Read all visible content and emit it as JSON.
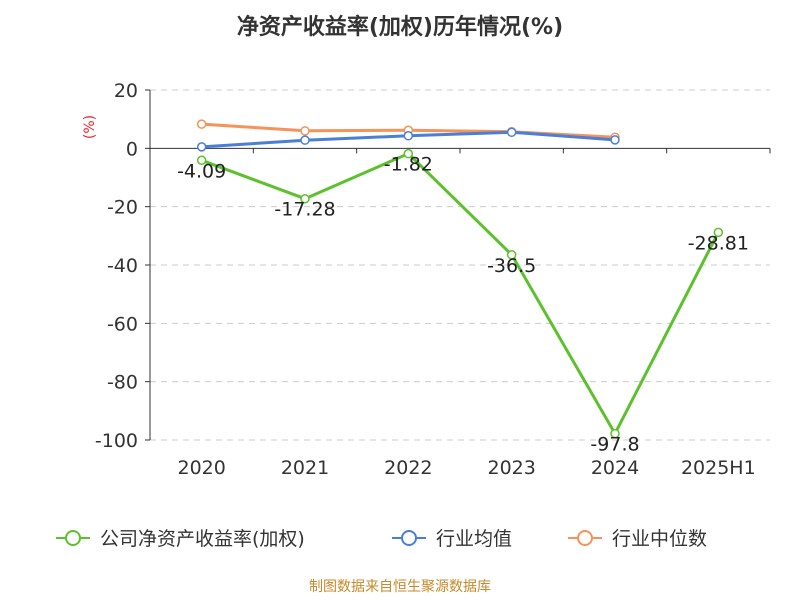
{
  "chart_data": {
    "type": "line",
    "title": "净资产收益率(加权)历年情况(%)",
    "ylabel": "(%)",
    "categories": [
      "2020",
      "2021",
      "2022",
      "2023",
      "2024",
      "2025H1"
    ],
    "ylim": [
      -100,
      20
    ],
    "yticks": [
      "20",
      "0",
      "-20",
      "-40",
      "-60",
      "-80",
      "-100"
    ],
    "grid": true,
    "legend_position": "bottom",
    "series": [
      {
        "name": "公司净资产收益率(加权)",
        "color": "#5cc12d",
        "values": [
          -4.09,
          -17.28,
          -1.82,
          -36.5,
          -97.8,
          -28.81
        ],
        "labels": [
          "-4.09",
          "-17.28",
          "-1.82",
          "-36.5",
          "-97.8",
          "-28.81"
        ]
      },
      {
        "name": "行业均值",
        "color": "#4a7fd8",
        "values": [
          0.5,
          2.8,
          4.3,
          5.5,
          2.9,
          null
        ]
      },
      {
        "name": "行业中位数",
        "color": "#f5935a",
        "values": [
          8.3,
          6.0,
          6.2,
          5.7,
          3.8,
          null
        ]
      }
    ]
  },
  "source": "制图数据来自恒生聚源数据库"
}
